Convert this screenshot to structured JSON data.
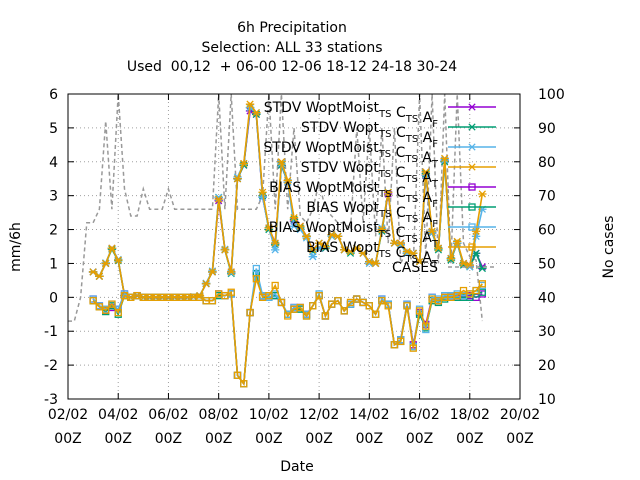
{
  "chart_data": {
    "type": "line",
    "title_lines": [
      "6h Precipitation",
      "Selection: ALL      33 stations",
      "Used  00,12  + 06-00 12-06 18-12 24-18 30-24"
    ],
    "xlabel": "Date",
    "ylabel": "mm/6h",
    "y2label": "No cases",
    "xlim": [
      0,
      18
    ],
    "ylim": [
      -3,
      6
    ],
    "y2lim": [
      10,
      100
    ],
    "x_unit": "days after 02/02 00Z",
    "x_ticks": [
      {
        "v": 0,
        "l1": "02/02",
        "l2": "00Z"
      },
      {
        "v": 2,
        "l1": "04/02",
        "l2": "00Z"
      },
      {
        "v": 4,
        "l1": "06/02",
        "l2": "00Z"
      },
      {
        "v": 6,
        "l1": "08/02",
        "l2": "00Z"
      },
      {
        "v": 8,
        "l1": "10/02",
        "l2": "00Z"
      },
      {
        "v": 10,
        "l1": "12/02",
        "l2": "00Z"
      },
      {
        "v": 12,
        "l1": "14/02",
        "l2": "00Z"
      },
      {
        "v": 14,
        "l1": "16/02",
        "l2": "00Z"
      },
      {
        "v": 16,
        "l1": "18/02",
        "l2": "00Z"
      },
      {
        "v": 18,
        "l1": "20/02",
        "l2": "00Z"
      }
    ],
    "y_ticks": [
      "-3",
      "-2",
      "-1",
      "0",
      "1",
      "2",
      "3",
      "4",
      "5",
      "6"
    ],
    "y2_ticks": [
      "10",
      "20",
      "30",
      "40",
      "50",
      "60",
      "70",
      "80",
      "90",
      "100"
    ],
    "grid": true,
    "legend_position": "top-right",
    "x": [
      1.0,
      1.25,
      1.5,
      1.75,
      2.0,
      2.25,
      2.5,
      2.75,
      3.0,
      3.25,
      3.5,
      3.75,
      4.0,
      4.25,
      4.5,
      4.75,
      5.0,
      5.25,
      5.5,
      5.75,
      6.0,
      6.25,
      6.5,
      6.75,
      7.0,
      7.25,
      7.5,
      7.75,
      8.0,
      8.25,
      8.5,
      8.75,
      9.0,
      9.25,
      9.5,
      9.75,
      10.0,
      10.25,
      10.5,
      10.75,
      11.0,
      11.25,
      11.5,
      11.75,
      12.0,
      12.25,
      12.5,
      12.75,
      13.0,
      13.25,
      13.5,
      13.75,
      14.0,
      14.25,
      14.5,
      14.75,
      15.0,
      15.25,
      15.5,
      15.75,
      16.0,
      16.25,
      16.5
    ],
    "series": [
      {
        "name": "STDV WoptMoist_TS C_TS A_F",
        "axis": "left",
        "marker": "x",
        "color": "#9400d3",
        "values": [
          0.75,
          0.62,
          1.0,
          1.45,
          1.1,
          0.05,
          0.0,
          0.05,
          0.0,
          0.0,
          0.0,
          0.0,
          0.0,
          0.0,
          0.0,
          0.0,
          0.02,
          0.05,
          0.4,
          0.75,
          2.85,
          1.4,
          0.75,
          3.5,
          3.9,
          5.5,
          5.4,
          2.95,
          2.05,
          1.6,
          3.9,
          3.4,
          2.25,
          2.1,
          1.8,
          1.4,
          1.6,
          1.45,
          1.85,
          1.8,
          1.4,
          1.35,
          1.45,
          1.3,
          1.05,
          1.0,
          2.0,
          3.05,
          1.6,
          1.6,
          1.3,
          1.3,
          1.05,
          3.6,
          1.9,
          1.45,
          4.05,
          1.15,
          1.6,
          1.0,
          0.95,
          1.3,
          0.9
        ]
      },
      {
        "name": "STDV Wopt_TS C_TS A_F",
        "axis": "left",
        "marker": "x",
        "color": "#009e73",
        "values": [
          0.75,
          0.62,
          1.0,
          1.42,
          1.08,
          0.05,
          0.0,
          0.05,
          0.0,
          0.0,
          0.0,
          0.0,
          0.0,
          0.0,
          0.0,
          0.0,
          0.02,
          0.05,
          0.4,
          0.75,
          2.95,
          1.4,
          0.7,
          3.5,
          3.9,
          5.6,
          5.4,
          3.0,
          2.0,
          1.55,
          3.9,
          3.4,
          2.3,
          2.05,
          1.8,
          1.35,
          1.6,
          1.45,
          1.85,
          1.8,
          1.4,
          1.3,
          1.45,
          1.3,
          1.05,
          1.0,
          1.95,
          3.1,
          1.6,
          1.55,
          1.3,
          1.3,
          1.05,
          3.65,
          1.9,
          1.4,
          4.0,
          1.1,
          1.6,
          0.95,
          0.9,
          1.3,
          0.85
        ]
      },
      {
        "name": "STDV WoptMoist_TS C_TS A_T",
        "axis": "left",
        "marker": "x",
        "color": "#56b4e9",
        "values": [
          0.75,
          0.63,
          1.02,
          1.45,
          1.12,
          0.06,
          0.0,
          0.05,
          0.0,
          0.0,
          0.0,
          0.0,
          0.0,
          0.0,
          0.0,
          0.0,
          0.02,
          0.05,
          0.42,
          0.78,
          2.95,
          1.42,
          0.72,
          3.55,
          3.95,
          5.6,
          5.45,
          2.95,
          2.05,
          1.4,
          3.95,
          3.4,
          2.1,
          2.0,
          1.75,
          1.2,
          1.45,
          1.5,
          1.8,
          1.8,
          1.4,
          1.35,
          1.45,
          1.3,
          1.0,
          1.0,
          2.05,
          3.1,
          1.6,
          1.55,
          1.3,
          1.3,
          1.05,
          3.6,
          1.9,
          1.45,
          4.05,
          1.15,
          1.6,
          1.0,
          0.9,
          1.8,
          2.6
        ]
      },
      {
        "name": "STDV Wopt_TS C_TS A_T",
        "axis": "left",
        "marker": "x",
        "color": "#e69f00",
        "values": [
          0.75,
          0.62,
          1.0,
          1.45,
          1.1,
          0.05,
          0.0,
          0.05,
          0.0,
          0.0,
          0.0,
          0.0,
          0.0,
          0.0,
          0.0,
          0.0,
          0.02,
          0.05,
          0.4,
          0.75,
          2.9,
          1.4,
          0.75,
          3.5,
          3.95,
          5.7,
          5.45,
          3.1,
          2.05,
          1.6,
          4.0,
          3.45,
          2.35,
          2.1,
          1.8,
          1.4,
          1.6,
          1.5,
          1.85,
          1.8,
          1.4,
          1.35,
          1.45,
          1.3,
          1.05,
          1.0,
          2.0,
          3.1,
          1.6,
          1.6,
          1.35,
          1.3,
          1.05,
          3.7,
          1.95,
          1.45,
          4.1,
          1.15,
          1.65,
          1.0,
          0.95,
          1.95,
          3.05
        ]
      },
      {
        "name": "BIAS WoptMoist_TS C_TS A_F",
        "axis": "left",
        "marker": "square",
        "color": "#9400d3",
        "values": [
          -0.05,
          -0.25,
          -0.4,
          -0.3,
          -0.35,
          0.1,
          0.0,
          0.05,
          0.0,
          0.0,
          0.0,
          0.0,
          0.0,
          0.0,
          0.0,
          0.0,
          0.0,
          0.0,
          -0.1,
          -0.1,
          0.1,
          0.05,
          0.1,
          -2.3,
          -2.55,
          -0.45,
          0.7,
          0.05,
          0.0,
          0.05,
          -0.15,
          -0.5,
          -0.3,
          -0.3,
          -0.5,
          -0.25,
          0.05,
          -0.55,
          -0.2,
          -0.1,
          -0.4,
          -0.2,
          -0.05,
          -0.15,
          -0.25,
          -0.5,
          -0.05,
          -0.2,
          -1.4,
          -1.25,
          -0.2,
          -1.4,
          -0.45,
          -0.8,
          0.0,
          -0.1,
          0.0,
          0.05,
          0.05,
          0.05,
          0.05,
          0.0,
          0.1
        ]
      },
      {
        "name": "BIAS Wopt_TS C_TS A_F",
        "axis": "left",
        "marker": "square",
        "color": "#009e73",
        "values": [
          -0.1,
          -0.28,
          -0.42,
          -0.25,
          -0.5,
          0.05,
          0.0,
          0.05,
          0.0,
          0.0,
          0.0,
          0.0,
          0.0,
          0.0,
          0.0,
          0.0,
          0.0,
          0.0,
          -0.1,
          -0.1,
          0.05,
          0.05,
          0.1,
          -2.3,
          -2.55,
          -0.45,
          0.7,
          0.0,
          0.0,
          0.05,
          -0.15,
          -0.5,
          -0.35,
          -0.35,
          -0.55,
          -0.25,
          0.05,
          -0.55,
          -0.2,
          -0.1,
          -0.4,
          -0.2,
          -0.05,
          -0.15,
          -0.25,
          -0.5,
          -0.1,
          -0.2,
          -1.4,
          -1.3,
          -0.25,
          -1.45,
          -0.5,
          -0.9,
          -0.1,
          -0.15,
          -0.05,
          0.0,
          0.0,
          0.0,
          0.0,
          0.1,
          0.15
        ]
      },
      {
        "name": "BIAS WoptMoist_TS C_TS A_T",
        "axis": "left",
        "marker": "square",
        "color": "#56b4e9",
        "values": [
          -0.05,
          -0.25,
          -0.35,
          -0.2,
          -0.35,
          0.1,
          0.0,
          0.05,
          0.0,
          0.0,
          0.0,
          0.0,
          0.0,
          0.0,
          0.0,
          0.0,
          0.0,
          0.0,
          -0.1,
          -0.1,
          0.1,
          0.05,
          0.1,
          -2.3,
          -2.55,
          -0.45,
          0.85,
          0.05,
          0.0,
          0.1,
          -0.15,
          -0.5,
          -0.3,
          -0.3,
          -0.5,
          -0.25,
          0.1,
          -0.55,
          -0.2,
          -0.1,
          -0.4,
          -0.2,
          -0.05,
          -0.15,
          -0.25,
          -0.5,
          -0.05,
          -0.2,
          -1.4,
          -1.25,
          -0.2,
          -1.45,
          -0.35,
          -0.95,
          0.0,
          -0.05,
          0.05,
          0.05,
          0.1,
          0.05,
          0.1,
          0.2,
          0.35
        ]
      },
      {
        "name": "BIAS Wopt_TS C_TS A_T",
        "axis": "left",
        "marker": "square",
        "color": "#e69f00",
        "values": [
          -0.1,
          -0.28,
          -0.38,
          -0.2,
          -0.45,
          0.05,
          0.0,
          0.05,
          0.0,
          0.0,
          0.0,
          0.0,
          0.0,
          0.0,
          0.0,
          0.0,
          0.0,
          0.0,
          -0.1,
          -0.1,
          0.1,
          0.05,
          0.15,
          -2.3,
          -2.55,
          -0.45,
          0.55,
          0.0,
          0.05,
          0.35,
          -0.15,
          -0.55,
          -0.35,
          -0.3,
          -0.55,
          -0.25,
          0.05,
          -0.55,
          -0.2,
          -0.1,
          -0.4,
          -0.15,
          -0.05,
          -0.15,
          -0.25,
          -0.5,
          -0.1,
          -0.25,
          -1.4,
          -1.3,
          -0.25,
          -1.5,
          -0.4,
          -0.85,
          -0.05,
          -0.1,
          0.0,
          0.0,
          0.05,
          0.2,
          0.1,
          0.2,
          0.4
        ]
      },
      {
        "name": "CASES",
        "axis": "right",
        "marker": "none",
        "color": "#999999",
        "dash": true,
        "x": [
          0.0,
          0.25,
          0.5,
          0.75,
          1.0,
          1.25,
          1.5,
          1.75,
          2.0,
          2.25,
          2.5,
          2.75,
          3.0,
          3.25,
          3.5,
          3.75,
          4.0,
          4.25,
          4.5,
          4.75,
          5.0,
          5.25,
          5.5,
          5.75,
          6.0,
          6.25,
          6.5,
          6.75,
          7.0,
          7.25,
          7.5,
          7.75,
          8.0,
          8.25,
          8.5,
          8.75,
          9.0,
          9.25,
          9.5,
          9.75,
          10.0,
          10.25,
          10.5,
          10.75,
          11.0,
          11.25,
          11.5,
          11.75,
          12.0,
          12.25,
          12.5,
          12.75,
          13.0,
          13.25,
          13.5,
          13.75,
          14.0,
          14.25,
          14.5,
          14.75,
          15.0,
          15.25,
          15.5,
          15.75,
          16.0,
          16.25,
          16.5
        ],
        "values": [
          33,
          33,
          40,
          62,
          62,
          66,
          92,
          66,
          100,
          72,
          64,
          64,
          72,
          66,
          66,
          66,
          72,
          66,
          66,
          66,
          66,
          66,
          66,
          66,
          100,
          66,
          100,
          66,
          66,
          66,
          66,
          70,
          100,
          66,
          100,
          66,
          90,
          64,
          62,
          66,
          74,
          66,
          64,
          62,
          62,
          60,
          90,
          62,
          90,
          58,
          90,
          56,
          90,
          50,
          54,
          50,
          100,
          52,
          100,
          50,
          100,
          50,
          100,
          56,
          52,
          51,
          33
        ]
      }
    ]
  }
}
